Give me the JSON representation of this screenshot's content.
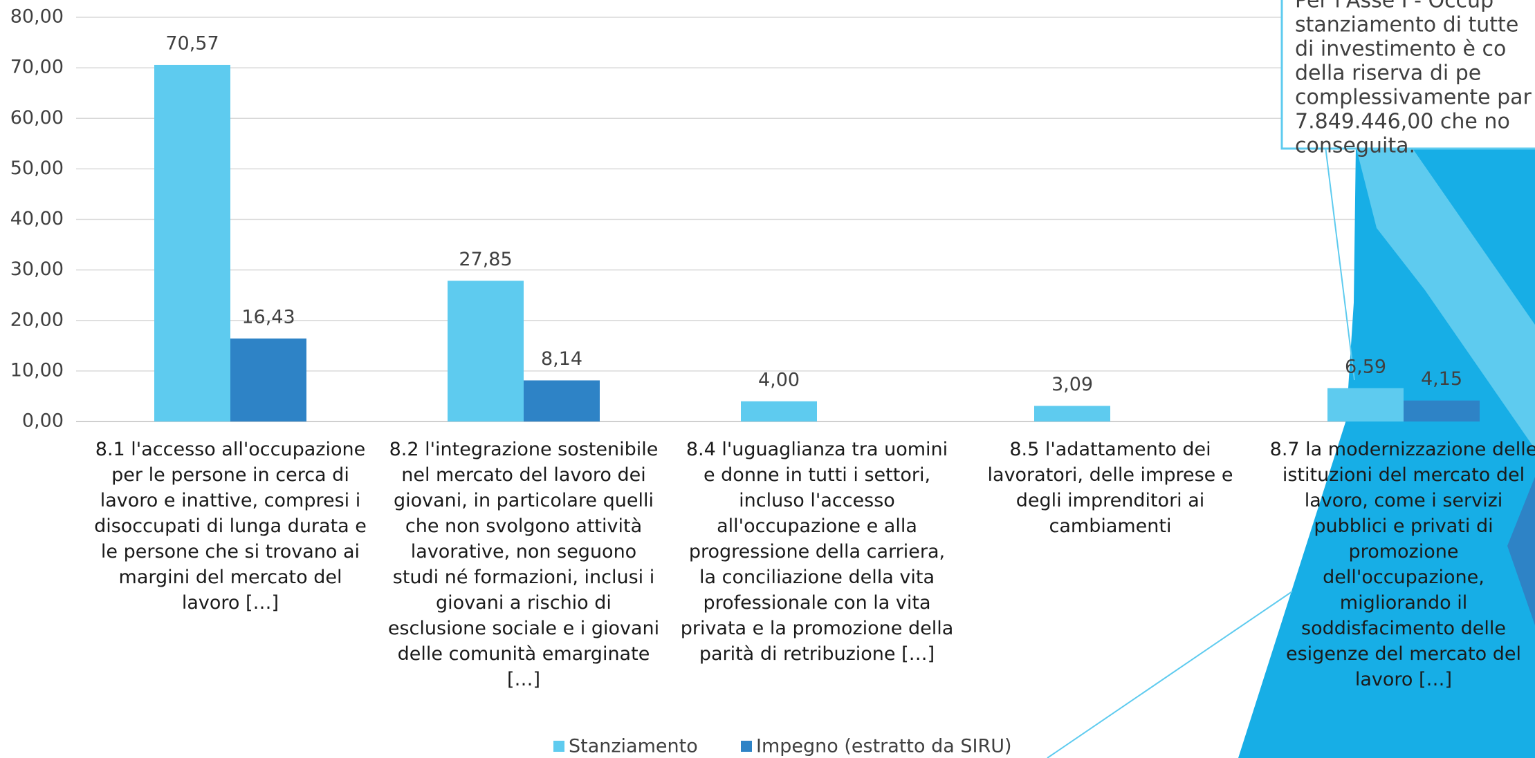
{
  "chart_data": {
    "type": "bar",
    "categories": [
      "8.1 l'accesso all'occupazione per le persone in cerca di lavoro e inattive, compresi i disoccupati di lunga durata e le persone che si trovano ai margini del mercato del lavoro […]",
      "8.2 l'integrazione sostenibile nel mercato del lavoro dei giovani, in particolare quelli che non svolgono attività lavorative, non seguono studi né formazioni, inclusi i giovani a rischio di esclusione sociale e i giovani delle comunità emarginate […]",
      "8.4 l'uguaglianza tra uomini e donne in tutti i settori, incluso l'accesso all'occupazione e alla progressione della carriera, la conciliazione della vita professionale con la vita privata e la promozione della parità di retribuzione […]",
      "8.5 l'adattamento dei lavoratori, delle imprese e degli imprenditori ai cambiamenti",
      "8.7 la modernizzazione delle istituzioni del mercato del lavoro, come i servizi pubblici e privati di promozione dell'occupazione, migliorando il soddisfacimento delle esigenze del mercato del lavoro […]"
    ],
    "series": [
      {
        "name": "Stanziamento",
        "color": "#5ecbef",
        "values": [
          70.57,
          27.85,
          4.0,
          3.09,
          6.59
        ],
        "value_labels": [
          "70,57",
          "27,85",
          "4,00",
          "3,09",
          "6,59"
        ]
      },
      {
        "name": "Impegno (estratto da SIRU)",
        "color": "#2e83c6",
        "values": [
          16.43,
          8.14,
          null,
          null,
          4.15
        ],
        "value_labels": [
          "16,43",
          "8,14",
          null,
          null,
          "4,15"
        ]
      }
    ],
    "ylim": [
      0,
      80
    ],
    "yticks": [
      {
        "value": 0,
        "label": "0,00"
      },
      {
        "value": 10,
        "label": "10,00"
      },
      {
        "value": 20,
        "label": "20,00"
      },
      {
        "value": 30,
        "label": "30,00"
      },
      {
        "value": 40,
        "label": "40,00"
      },
      {
        "value": 50,
        "label": "50,00"
      },
      {
        "value": 60,
        "label": "60,00"
      },
      {
        "value": 70,
        "label": "70,00"
      },
      {
        "value": 80,
        "label": "80,00"
      }
    ],
    "grid": true,
    "legend": "bottom",
    "annotation": [
      "Per l'Asse I - Occup",
      "stanziamento di tutte",
      "di investimento è co",
      "della riserva di pe",
      "complessivamente par",
      "7.849.446,00 che no",
      "conseguita."
    ]
  }
}
